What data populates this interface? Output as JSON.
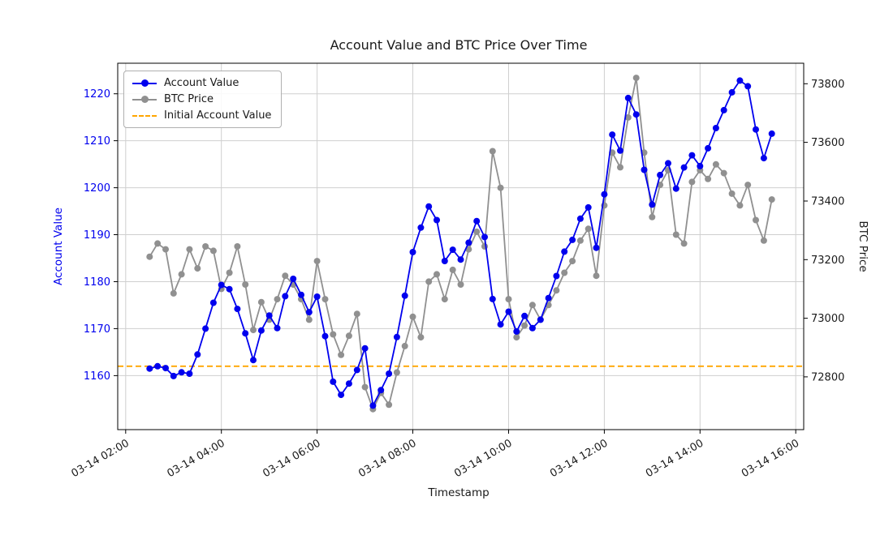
{
  "chart_data": {
    "type": "line",
    "title": "Account Value and BTC Price Over Time",
    "xlabel": "Timestamp",
    "ylabel_left": "Account Value",
    "ylabel_right": "BTC Price",
    "grid": true,
    "legend_position": "upper left",
    "xlim": [
      "03-14 01:50",
      "03-14 16:10"
    ],
    "ylim_left": [
      1148.5,
      1226.5
    ],
    "ylim_right": [
      72620,
      73870
    ],
    "x_ticks": [
      "03-14 02:00",
      "03-14 04:00",
      "03-14 06:00",
      "03-14 08:00",
      "03-14 10:00",
      "03-14 12:00",
      "03-14 14:00",
      "03-14 16:00"
    ],
    "y_ticks_left": [
      1160,
      1170,
      1180,
      1190,
      1200,
      1210,
      1220
    ],
    "y_ticks_right": [
      72800,
      73000,
      73200,
      73400,
      73600,
      73800
    ],
    "x": [
      "03-14 02:30",
      "03-14 02:40",
      "03-14 02:50",
      "03-14 03:00",
      "03-14 03:10",
      "03-14 03:20",
      "03-14 03:30",
      "03-14 03:40",
      "03-14 03:50",
      "03-14 04:00",
      "03-14 04:10",
      "03-14 04:20",
      "03-14 04:30",
      "03-14 04:40",
      "03-14 04:50",
      "03-14 05:00",
      "03-14 05:10",
      "03-14 05:20",
      "03-14 05:30",
      "03-14 05:40",
      "03-14 05:50",
      "03-14 06:00",
      "03-14 06:10",
      "03-14 06:20",
      "03-14 06:30",
      "03-14 06:40",
      "03-14 06:50",
      "03-14 07:00",
      "03-14 07:10",
      "03-14 07:20",
      "03-14 07:30",
      "03-14 07:40",
      "03-14 07:50",
      "03-14 08:00",
      "03-14 08:10",
      "03-14 08:20",
      "03-14 08:30",
      "03-14 08:40",
      "03-14 08:50",
      "03-14 09:00",
      "03-14 09:10",
      "03-14 09:20",
      "03-14 09:30",
      "03-14 09:40",
      "03-14 09:50",
      "03-14 10:00",
      "03-14 10:10",
      "03-14 10:20",
      "03-14 10:30",
      "03-14 10:40",
      "03-14 10:50",
      "03-14 11:00",
      "03-14 11:10",
      "03-14 11:20",
      "03-14 11:30",
      "03-14 11:40",
      "03-14 11:50",
      "03-14 12:00",
      "03-14 12:10",
      "03-14 12:20",
      "03-14 12:30",
      "03-14 12:40",
      "03-14 12:50",
      "03-14 13:00",
      "03-14 13:10",
      "03-14 13:20",
      "03-14 13:30",
      "03-14 13:40",
      "03-14 13:50",
      "03-14 14:00",
      "03-14 14:10",
      "03-14 14:20",
      "03-14 14:30",
      "03-14 14:40",
      "03-14 14:50",
      "03-14 15:00",
      "03-14 15:10",
      "03-14 15:20",
      "03-14 15:30"
    ],
    "series": [
      {
        "name": "Account Value",
        "axis": "left",
        "color": "#0000ee",
        "marker": "circle",
        "values": [
          1161.5,
          1162.0,
          1161.6,
          1159.9,
          1160.7,
          1160.4,
          1164.5,
          1170.0,
          1175.5,
          1179.3,
          1178.4,
          1174.2,
          1169.0,
          1163.3,
          1169.6,
          1172.8,
          1170.1,
          1176.9,
          1180.6,
          1177.2,
          1173.5,
          1176.8,
          1168.4,
          1158.7,
          1155.9,
          1158.3,
          1161.2,
          1165.8,
          1153.6,
          1156.9,
          1160.4,
          1168.2,
          1177.0,
          1186.3,
          1191.5,
          1196.0,
          1193.1,
          1184.4,
          1186.8,
          1184.7,
          1188.3,
          1192.9,
          1189.5,
          1176.3,
          1170.9,
          1173.6,
          1169.4,
          1172.7,
          1170.1,
          1171.9,
          1176.5,
          1181.2,
          1186.4,
          1188.9,
          1193.4,
          1195.8,
          1187.2,
          1198.6,
          1211.3,
          1207.9,
          1219.1,
          1215.6,
          1203.8,
          1196.4,
          1202.7,
          1205.2,
          1199.8,
          1204.3,
          1206.9,
          1204.6,
          1208.4,
          1212.7,
          1216.5,
          1220.3,
          1222.8,
          1221.6,
          1212.4,
          1206.3,
          1211.5
        ]
      },
      {
        "name": "BTC Price",
        "axis": "right",
        "color": "#909090",
        "marker": "circle",
        "values": [
          73210,
          73255,
          73235,
          73085,
          73150,
          73235,
          73170,
          73245,
          73230,
          73100,
          73155,
          73245,
          73115,
          72960,
          73055,
          72995,
          73065,
          73145,
          73115,
          73065,
          72995,
          73195,
          73065,
          72945,
          72875,
          72940,
          73015,
          72765,
          72690,
          72745,
          72705,
          72815,
          72905,
          73005,
          72935,
          73125,
          73150,
          73065,
          73165,
          73115,
          73235,
          73295,
          73245,
          73570,
          73445,
          73065,
          72935,
          72975,
          73045,
          72995,
          73045,
          73095,
          73155,
          73195,
          73265,
          73305,
          73145,
          73385,
          73565,
          73515,
          73685,
          73820,
          73565,
          73345,
          73455,
          73505,
          73285,
          73255,
          73465,
          73505,
          73475,
          73525,
          73495,
          73425,
          73385,
          73455,
          73335,
          73265,
          73405
        ]
      }
    ],
    "reference_line": {
      "name": "Initial Account Value",
      "axis": "left",
      "value": 1162,
      "color": "#ffa500",
      "style": "dashed"
    },
    "legend_labels": [
      "Account Value",
      "BTC Price",
      "Initial Account Value"
    ]
  }
}
